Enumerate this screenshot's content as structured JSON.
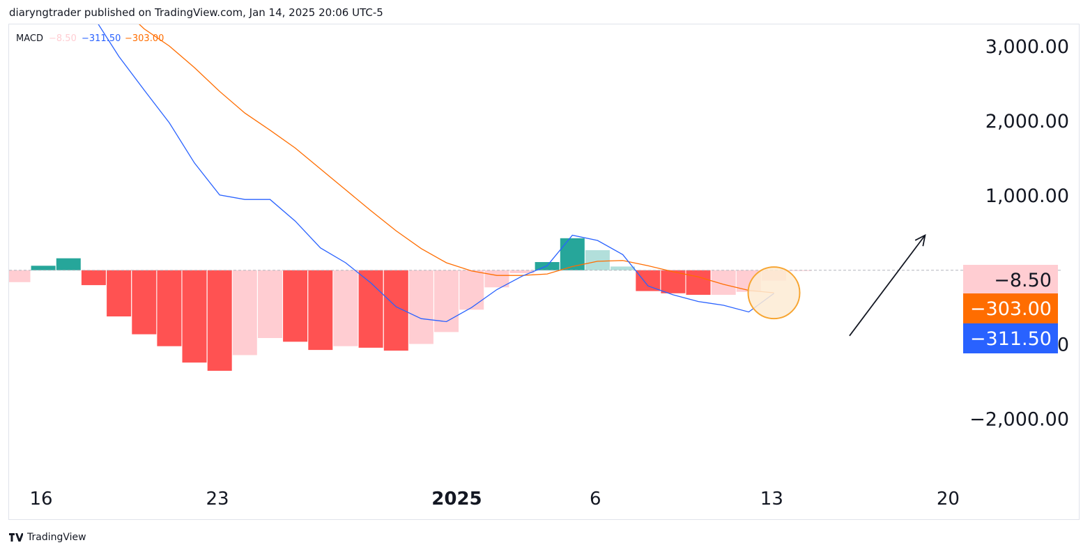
{
  "header": {
    "text": "diaryngtrader published on TradingView.com, Jan 14, 2025 20:06 UTC-5"
  },
  "footer": {
    "brand": "TradingView"
  },
  "colors": {
    "macd_line": "#2962ff",
    "signal_line": "#ff6d00",
    "hist_pos_strong": "#26a69a",
    "hist_pos_weak": "#b2dfdb",
    "hist_neg_strong": "#ff5252",
    "hist_neg_weak": "#ffcdd2",
    "highlight_circle_fill": "#fdebd3",
    "highlight_circle_stroke": "#f7a531"
  },
  "chart_data": {
    "type": "bar",
    "indicator": "MACD",
    "legend": {
      "label": "MACD",
      "hist": "−8.50",
      "macd": "−311.50",
      "signal": "−303.00"
    },
    "x_ticks": [
      {
        "label": "16",
        "index": 0,
        "bold": false
      },
      {
        "label": "23",
        "index": 7,
        "bold": false
      },
      {
        "label": "2025",
        "index": 16.5,
        "bold": true
      },
      {
        "label": "6",
        "index": 22,
        "bold": false
      },
      {
        "label": "13",
        "index": 29,
        "bold": false
      },
      {
        "label": "20",
        "index": 36,
        "bold": false
      }
    ],
    "y_ticks": [
      {
        "label": "3,000.00",
        "value": 3000
      },
      {
        "label": "2,000.00",
        "value": 2000
      },
      {
        "label": "1,000.00",
        "value": 1000
      },
      {
        "label": "−1,000.00",
        "value": -1000
      },
      {
        "label": "−2,000.00",
        "value": -2000
      }
    ],
    "ylim": [
      -2800,
      3300
    ],
    "histogram": [
      -160,
      60,
      160,
      -200,
      -620,
      -860,
      -1020,
      -1240,
      -1350,
      -1140,
      -910,
      -960,
      -1070,
      -1020,
      -1040,
      -1080,
      -990,
      -830,
      -530,
      -230,
      -40,
      110,
      430,
      270,
      50,
      -280,
      -310,
      -330,
      -330,
      -290,
      -140,
      -8.5
    ],
    "histogram_colors": [
      "weak_neg",
      "strong_pos",
      "strong_pos",
      "strong_neg",
      "strong_neg",
      "strong_neg",
      "strong_neg",
      "strong_neg",
      "strong_neg",
      "weak_neg",
      "weak_neg",
      "strong_neg",
      "strong_neg",
      "weak_neg",
      "strong_neg",
      "strong_neg",
      "weak_neg",
      "weak_neg",
      "weak_neg",
      "weak_neg",
      "weak_neg",
      "strong_pos",
      "strong_pos",
      "weak_pos",
      "weak_pos",
      "strong_neg",
      "strong_neg",
      "strong_neg",
      "weak_neg",
      "weak_neg",
      "weak_neg",
      "weak_neg"
    ],
    "macd_series": [
      [
        3,
        3400
      ],
      [
        4,
        2870
      ],
      [
        5,
        2420
      ],
      [
        6,
        1980
      ],
      [
        7,
        1440
      ],
      [
        8,
        1010
      ],
      [
        9,
        950
      ],
      [
        10,
        950
      ],
      [
        11,
        660
      ],
      [
        12,
        300
      ],
      [
        13,
        100
      ],
      [
        14,
        -170
      ],
      [
        15,
        -490
      ],
      [
        16,
        -650
      ],
      [
        17,
        -690
      ],
      [
        18,
        -500
      ],
      [
        19,
        -260
      ],
      [
        20,
        -80
      ],
      [
        21,
        60
      ],
      [
        22,
        470
      ],
      [
        23,
        400
      ],
      [
        24,
        210
      ],
      [
        25,
        -210
      ],
      [
        26,
        -330
      ],
      [
        27,
        -420
      ],
      [
        28,
        -470
      ],
      [
        29,
        -560
      ],
      [
        30,
        -311.5
      ]
    ],
    "signal_series": [
      [
        4.5,
        3400
      ],
      [
        5,
        3240
      ],
      [
        6,
        3010
      ],
      [
        7,
        2720
      ],
      [
        8,
        2400
      ],
      [
        9,
        2110
      ],
      [
        10,
        1880
      ],
      [
        11,
        1640
      ],
      [
        12,
        1360
      ],
      [
        13,
        1080
      ],
      [
        14,
        800
      ],
      [
        15,
        530
      ],
      [
        16,
        290
      ],
      [
        17,
        100
      ],
      [
        18,
        -10
      ],
      [
        19,
        -70
      ],
      [
        20,
        -70
      ],
      [
        21,
        -50
      ],
      [
        22,
        50
      ],
      [
        23,
        120
      ],
      [
        24,
        130
      ],
      [
        25,
        60
      ],
      [
        26,
        -20
      ],
      [
        27,
        -90
      ],
      [
        28,
        -190
      ],
      [
        29,
        -270
      ],
      [
        30,
        -303
      ]
    ],
    "value_badges": [
      {
        "label": "−8.50",
        "value": -8.5,
        "bg": "#ffcdd2",
        "fg": "#131722"
      },
      {
        "label": "−303.00",
        "value": -303,
        "bg": "#ff6d00",
        "fg": "#ffffff"
      },
      {
        "label": "−311.50",
        "value": -311.5,
        "bg": "#2962ff",
        "fg": "#ffffff"
      }
    ],
    "highlight": {
      "index": 30,
      "value": -303
    },
    "arrow": {
      "from": {
        "index": 33,
        "value": -880
      },
      "to": {
        "index": 36,
        "value": 470
      }
    }
  }
}
